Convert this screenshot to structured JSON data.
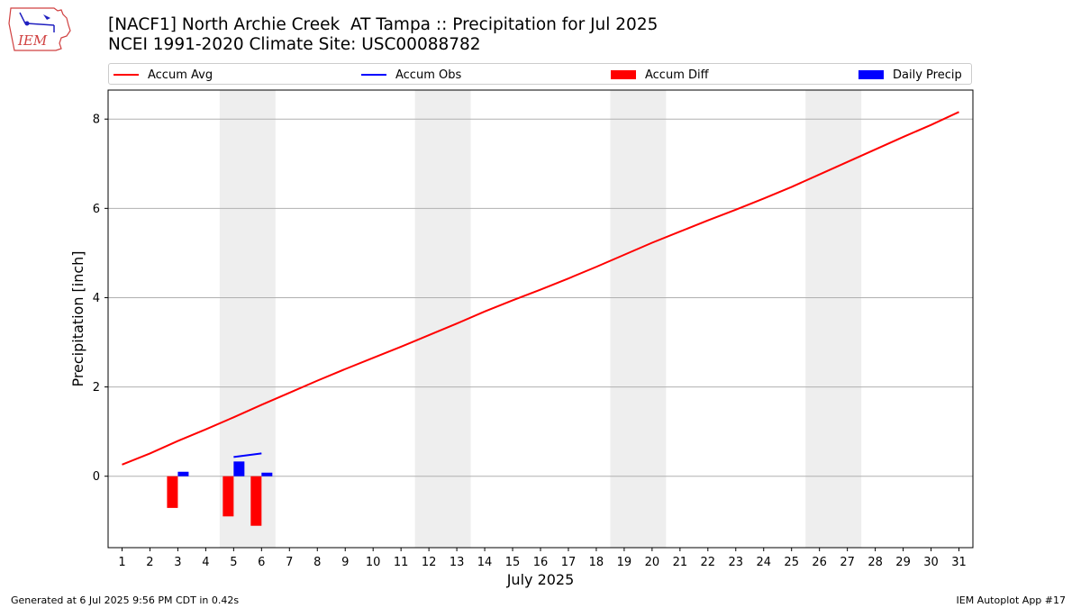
{
  "header": {
    "logo_text": "IEM",
    "title_line1": "[NACF1] North Archie Creek  AT Tampa :: Precipitation for Jul 2025",
    "title_line2": "NCEI 1991-2020 Climate Site: USC00088782"
  },
  "legend": {
    "items": [
      {
        "label": "Accum Avg",
        "kind": "line",
        "color": "#ff0000"
      },
      {
        "label": "Accum Obs",
        "kind": "line",
        "color": "#0000ff"
      },
      {
        "label": "Accum Diff",
        "kind": "box",
        "color": "#ff0000"
      },
      {
        "label": "Daily Precip",
        "kind": "box",
        "color": "#0000ff"
      }
    ]
  },
  "footer": {
    "left": "Generated at 6 Jul 2025 9:56 PM CDT in 0.42s",
    "right": "IEM Autoplot App #17"
  },
  "chart_data": {
    "type": "line",
    "xlabel": "July 2025",
    "ylabel": "Precipitation [inch]",
    "x": [
      1,
      2,
      3,
      4,
      5,
      6,
      7,
      8,
      9,
      10,
      11,
      12,
      13,
      14,
      15,
      16,
      17,
      18,
      19,
      20,
      21,
      22,
      23,
      24,
      25,
      26,
      27,
      28,
      29,
      30,
      31
    ],
    "xlim": [
      0.5,
      31.5
    ],
    "ylim": [
      -1.6,
      8.65
    ],
    "yticks": [
      0,
      2,
      4,
      6,
      8
    ],
    "grid": "horizontal",
    "legend_position": "top",
    "weekend_bands": [
      [
        4.5,
        6.5
      ],
      [
        11.5,
        13.5
      ],
      [
        18.5,
        20.5
      ],
      [
        25.5,
        27.5
      ]
    ],
    "series": [
      {
        "name": "Accum Avg",
        "kind": "line",
        "color": "#ff0000",
        "values": [
          0.26,
          0.51,
          0.79,
          1.05,
          1.32,
          1.6,
          1.87,
          2.14,
          2.4,
          2.65,
          2.9,
          3.16,
          3.42,
          3.69,
          3.94,
          4.18,
          4.43,
          4.69,
          4.96,
          5.23,
          5.48,
          5.73,
          5.97,
          6.22,
          6.48,
          6.76,
          7.04,
          7.32,
          7.6,
          7.87,
          8.16
        ]
      },
      {
        "name": "Accum Obs",
        "kind": "line",
        "color": "#0000ff",
        "x": [
          5,
          6
        ],
        "values": [
          0.43,
          0.51
        ]
      },
      {
        "name": "Accum Diff",
        "kind": "bar",
        "color": "#ff0000",
        "x": [
          3,
          5,
          6
        ],
        "values": [
          -0.71,
          -0.9,
          -1.11
        ]
      },
      {
        "name": "Daily Precip",
        "kind": "bar",
        "color": "#0000ff",
        "x": [
          3,
          5,
          6
        ],
        "values": [
          0.1,
          0.33,
          0.08
        ]
      }
    ]
  }
}
